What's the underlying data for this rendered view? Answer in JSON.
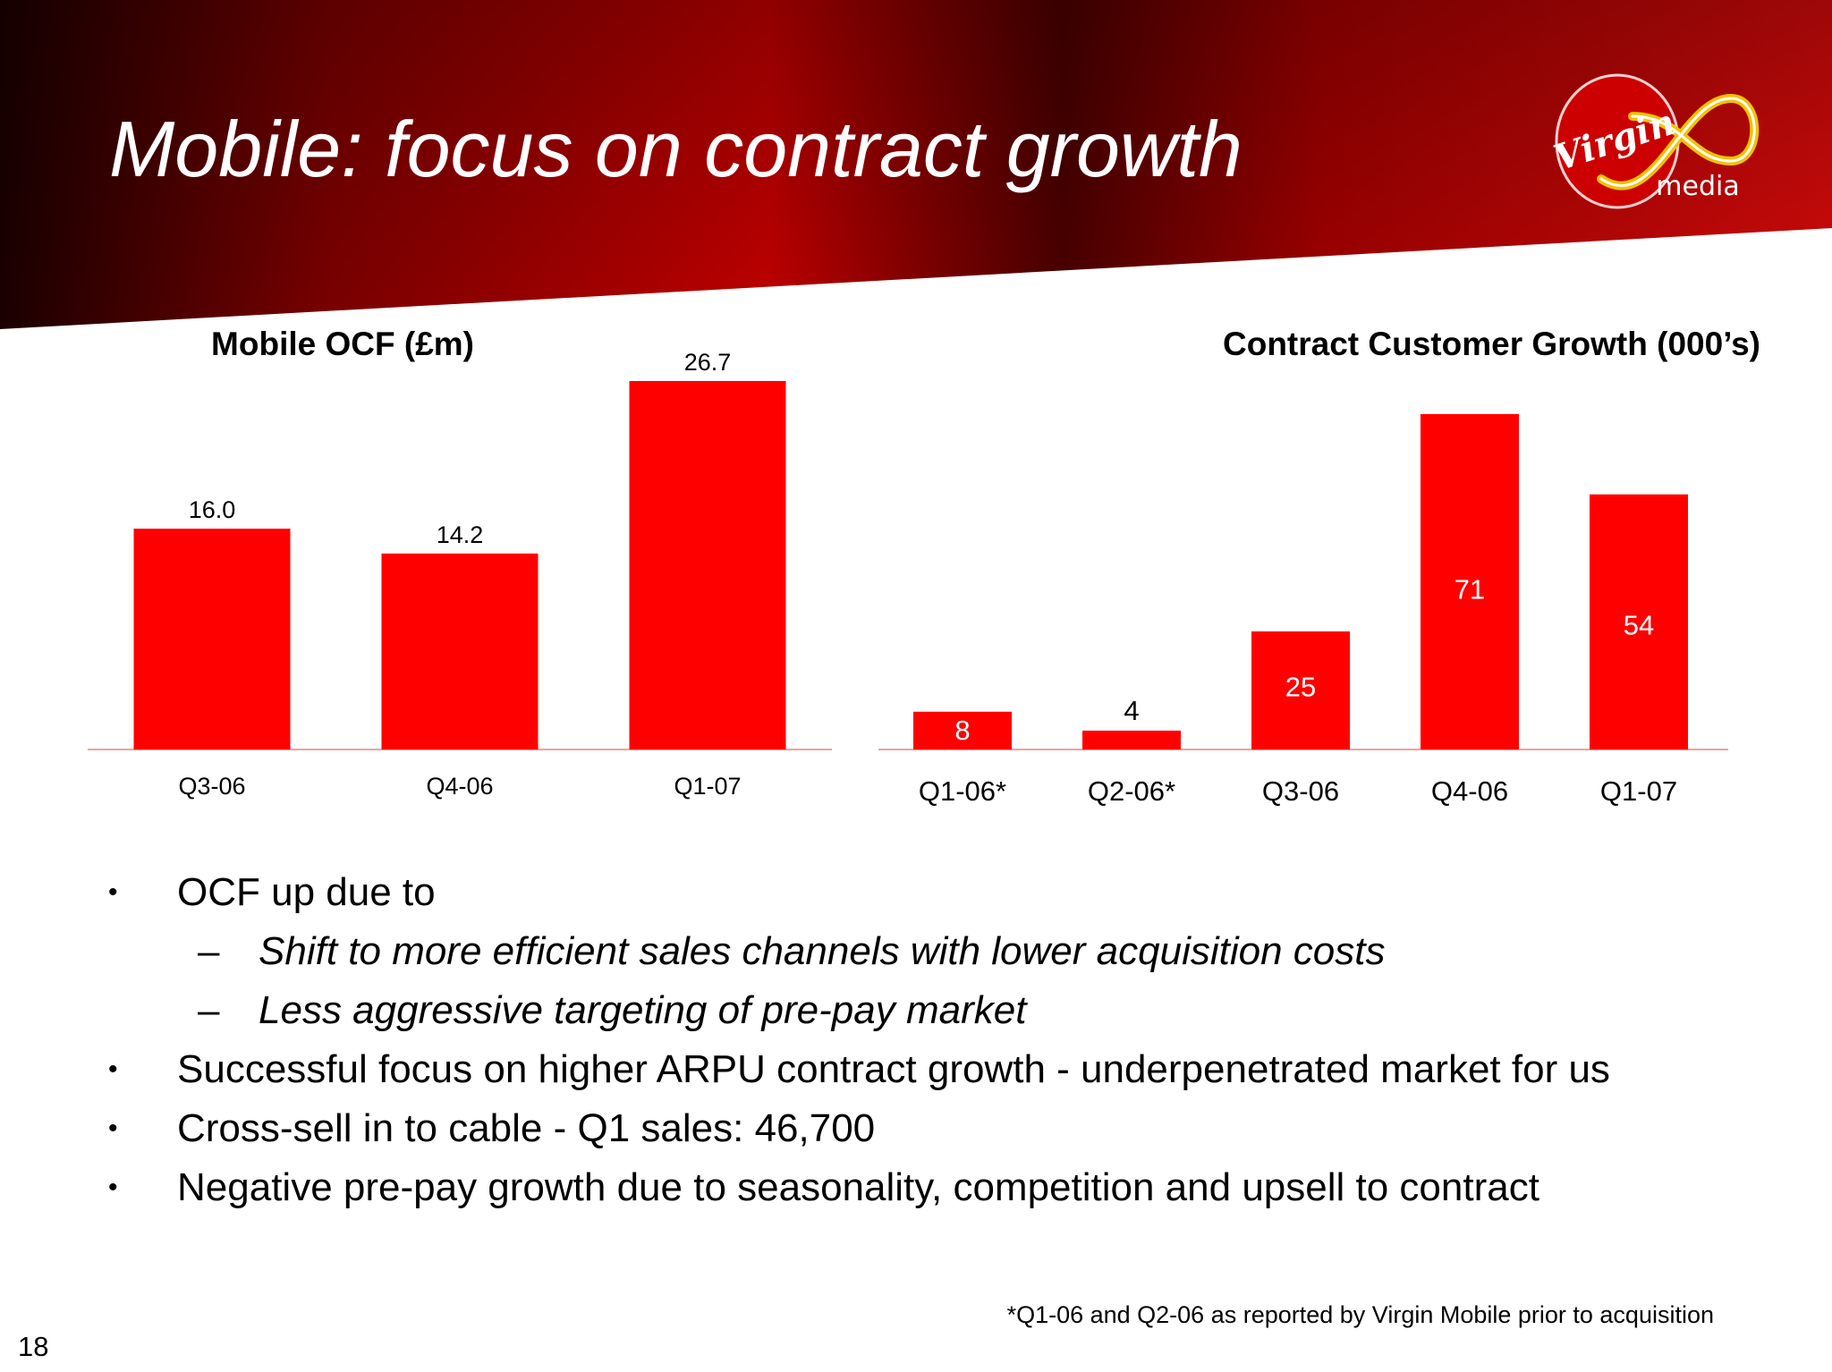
{
  "slide": {
    "title": "Mobile: focus on contract growth",
    "page_number": "18",
    "footnote": "*Q1-06 and Q2-06 as reported by Virgin Mobile prior to acquisition"
  },
  "logo": {
    "script_text": "Virgin",
    "text": "media",
    "icon": "virgin-media-logo"
  },
  "colors": {
    "bar": "#ff0000",
    "banner_dark": "#3a0000",
    "banner_red": "#b30000"
  },
  "chart_data": [
    {
      "type": "bar",
      "title": "Mobile OCF (£m)",
      "categories": [
        "Q3-06",
        "Q4-06",
        "Q1-07"
      ],
      "values": [
        16.0,
        14.2,
        26.7
      ],
      "value_labels": [
        "16.0",
        "14.2",
        "26.7"
      ],
      "label_position": "above",
      "xlabel": "",
      "ylabel": "",
      "ylim": [
        0,
        26.7
      ],
      "grid": false,
      "legend": "none"
    },
    {
      "type": "bar",
      "title": "Contract Customer Growth (000’s)",
      "categories": [
        "Q1-06*",
        "Q2-06*",
        "Q3-06",
        "Q4-06",
        "Q1-07"
      ],
      "values": [
        8,
        4,
        25,
        71,
        54
      ],
      "value_labels": [
        "8",
        "4",
        "25",
        "71",
        "54"
      ],
      "label_position": "inside",
      "xlabel": "",
      "ylabel": "",
      "ylim": [
        0,
        71
      ],
      "grid": false,
      "legend": "none"
    }
  ],
  "bullets": [
    {
      "level": 1,
      "marker": "•",
      "text": "OCF up due to"
    },
    {
      "level": 2,
      "marker": "–",
      "text": "Shift to more efficient sales channels with lower acquisition costs"
    },
    {
      "level": 2,
      "marker": "–",
      "text": "Less aggressive targeting of pre-pay market"
    },
    {
      "level": 1,
      "marker": "•",
      "text": "Successful focus on higher ARPU contract growth - underpenetrated market for us"
    },
    {
      "level": 1,
      "marker": "•",
      "text": "Cross-sell in to cable - Q1 sales: 46,700"
    },
    {
      "level": 1,
      "marker": "•",
      "text": "Negative pre-pay growth due to seasonality, competition and upsell to contract"
    }
  ]
}
